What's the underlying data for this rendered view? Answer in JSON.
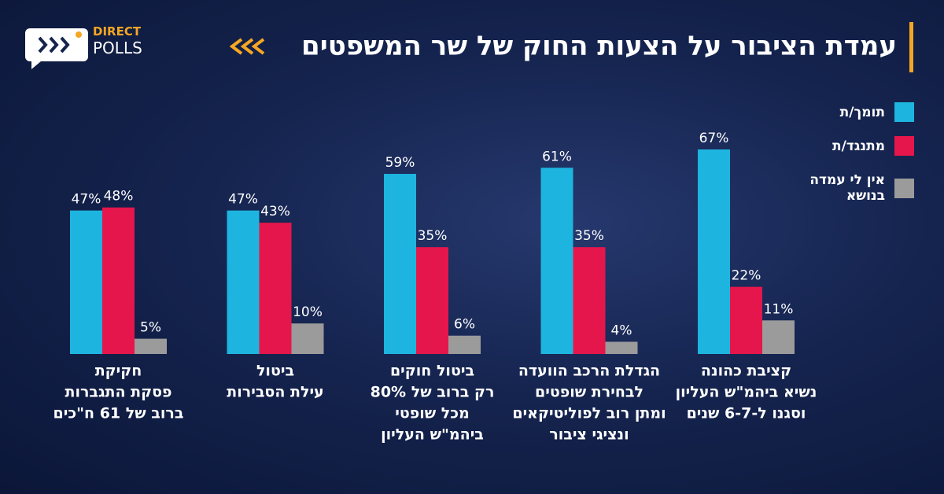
{
  "logo": {
    "line1": "DIRECT",
    "line2": "POLLS"
  },
  "chart_data": {
    "type": "bar",
    "title": "עמדת הציבור על הצעות החוק של שר המשפטים",
    "categories": [
      [
        "חקיקת",
        "פסקת התגברות",
        "ברוב של 61 ח\"כים"
      ],
      [
        "ביטול",
        "עילת הסבירות"
      ],
      [
        "ביטול חוקים",
        "רק ברוב של 80%",
        "מכל שופטי",
        "ביהמ\"ש העליון"
      ],
      [
        "הגדלת הרכב הוועדה",
        "לבחירת שופטים",
        "ומתן רוב לפוליטיקאים",
        "ונציגי ציבור"
      ],
      [
        "קציבת כהונה",
        "נשיא ביהמ\"ש העליון",
        "וסגנו ל-6-7 שנים"
      ]
    ],
    "series": [
      {
        "name": "תומך/ת",
        "color": "#1db5df",
        "values": [
          47,
          47,
          59,
          61,
          67
        ],
        "value_labels": [
          "47%",
          "47%",
          "59%",
          "61%",
          "67%"
        ]
      },
      {
        "name": "מתנגד/ת",
        "color": "#e5164c",
        "values": [
          48,
          43,
          35,
          35,
          22
        ],
        "value_labels": [
          "48%",
          "43%",
          "35%",
          "35%",
          "22%"
        ]
      },
      {
        "name": "אין לי עמדה בנושא",
        "color": "#9b9b9b",
        "values": [
          5,
          10,
          6,
          4,
          11
        ],
        "value_labels": [
          "5%",
          "10%",
          "6%",
          "4%",
          "11%"
        ]
      }
    ],
    "legend": "top-right"
  }
}
